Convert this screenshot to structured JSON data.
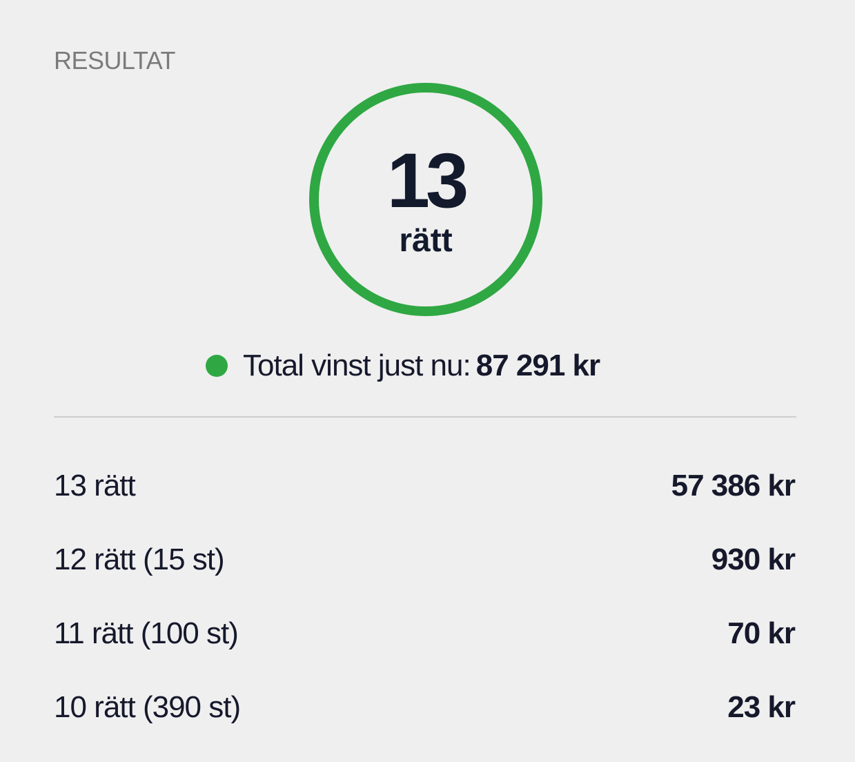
{
  "section_title": "RESULTAT",
  "score": {
    "number": "13",
    "label": "rätt"
  },
  "total": {
    "label": "Total vinst just nu:",
    "value": "87 291 kr",
    "status_color": "#2fa844"
  },
  "prizes": [
    {
      "label": "13 rätt",
      "amount": "57 386 kr"
    },
    {
      "label": "12 rätt (15 st)",
      "amount": "930 kr"
    },
    {
      "label": "11 rätt (100 st)",
      "amount": "70 kr"
    },
    {
      "label": "10 rätt (390 st)",
      "amount": "23 kr"
    }
  ],
  "colors": {
    "accent": "#2fa844",
    "text": "#16192b",
    "muted": "#7b7b7b",
    "background": "#efefef"
  }
}
